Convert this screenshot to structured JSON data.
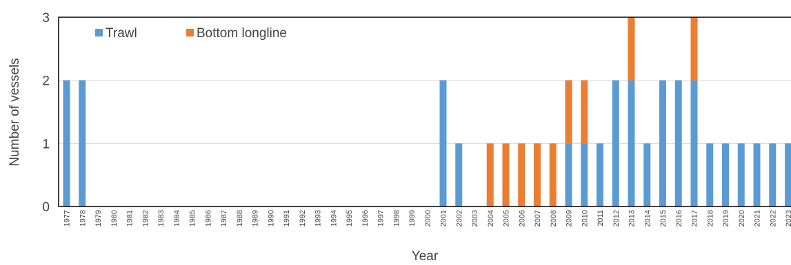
{
  "chart_data": {
    "type": "bar",
    "stacked": true,
    "title": "",
    "xlabel": "Year",
    "ylabel": "Number of vessels",
    "ylim": [
      0,
      3
    ],
    "yticks": [
      "0",
      "1",
      "2",
      "3"
    ],
    "grid": true,
    "legend_position": "top-left",
    "categories": [
      "1977",
      "1978",
      "1979",
      "1980",
      "1981",
      "1982",
      "1983",
      "1984",
      "1985",
      "1986",
      "1987",
      "1988",
      "1989",
      "1990",
      "1991",
      "1992",
      "1993",
      "1994",
      "1995",
      "1996",
      "1997",
      "1998",
      "1999",
      "2000",
      "2001",
      "2002",
      "2003",
      "2004",
      "2005",
      "2006",
      "2007",
      "2008",
      "2009",
      "2010",
      "2011",
      "2012",
      "2013",
      "2014",
      "2015",
      "2016",
      "2017",
      "2018",
      "2019",
      "2020",
      "2021",
      "2022",
      "2023"
    ],
    "series": [
      {
        "name": "Trawl",
        "color": "#5B9BD5",
        "values": [
          2,
          2,
          0,
          0,
          0,
          0,
          0,
          0,
          0,
          0,
          0,
          0,
          0,
          0,
          0,
          0,
          0,
          0,
          0,
          0,
          0,
          0,
          0,
          0,
          2,
          1,
          0,
          0,
          0,
          0,
          0,
          0,
          1,
          1,
          1,
          2,
          2,
          1,
          2,
          2,
          2,
          1,
          1,
          1,
          1,
          1,
          1
        ]
      },
      {
        "name": "Bottom longline",
        "color": "#ED7D31",
        "values": [
          0,
          0,
          0,
          0,
          0,
          0,
          0,
          0,
          0,
          0,
          0,
          0,
          0,
          0,
          0,
          0,
          0,
          0,
          0,
          0,
          0,
          0,
          0,
          0,
          0,
          0,
          0,
          1,
          1,
          1,
          1,
          1,
          1,
          1,
          0,
          0,
          1,
          0,
          0,
          0,
          1,
          0,
          0,
          0,
          0,
          0,
          0
        ]
      }
    ]
  }
}
